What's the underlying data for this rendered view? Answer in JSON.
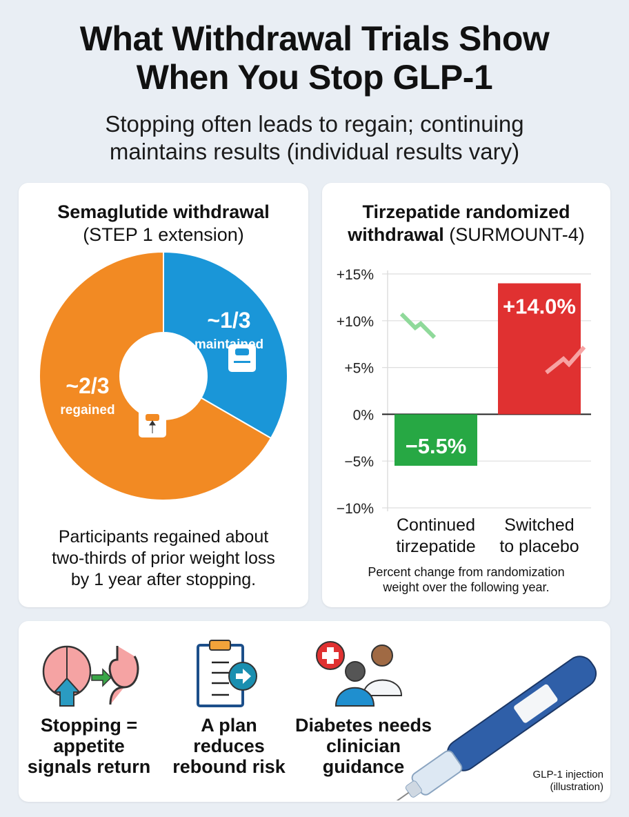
{
  "header": {
    "title_line1": "What Withdrawal Trials Show",
    "title_line2": "When You Stop GLP-1",
    "subtitle_line1": "Stopping often leads to regain; continuing",
    "subtitle_line2": "maintains results (individual results vary)"
  },
  "left_panel": {
    "title_bold": "Semaglutide withdrawal",
    "title_rest": "(STEP 1 extension)",
    "caption_line1": "Participants regained about",
    "caption_line2": "two-thirds of prior weight loss",
    "caption_line3": "by 1 year after stopping."
  },
  "right_panel": {
    "title_line1": "Tirzepatide randomized",
    "title_line2_bold": "withdrawal",
    "title_line2_rest": " (SURMOUNT-4)",
    "caption_line1": "Percent change from randomization",
    "caption_line2": "weight over the following year."
  },
  "chart_data": [
    {
      "type": "pie",
      "style": "donut",
      "slices": [
        {
          "label": "~1/3",
          "sublabel": "maintained",
          "value": 0.3333,
          "color": "#1a96d8",
          "icon": "scale-icon"
        },
        {
          "label": "~2/3",
          "sublabel": "regained",
          "value": 0.6667,
          "color": "#f28a23",
          "icon": "scale-up-icon"
        }
      ]
    },
    {
      "type": "bar",
      "categories": [
        "Continued tirzepatide",
        "Switched to placebo"
      ],
      "category_lines": [
        [
          "Continued",
          "tirzepatide"
        ],
        [
          "Switched",
          "to placebo"
        ]
      ],
      "values": [
        -5.5,
        14.0
      ],
      "data_labels": [
        "−5.5%",
        "+14.0%"
      ],
      "colors": [
        "#27a844",
        "#e03131"
      ],
      "ylim": [
        -10,
        15
      ],
      "yticks": [
        15,
        10,
        5,
        0,
        -5,
        -10
      ],
      "ytick_labels": [
        "+15%",
        "+10%",
        "+5%",
        "0%",
        "−5%",
        "−10%"
      ],
      "grid": true
    }
  ],
  "bottom": {
    "items": [
      {
        "icon": "brain-stomach-icon",
        "lines": [
          "Stopping =",
          "appetite",
          "signals return"
        ]
      },
      {
        "icon": "clipboard-plan-icon",
        "lines": [
          "A plan",
          "reduces",
          "rebound risk"
        ]
      },
      {
        "icon": "clinician-icon",
        "lines": [
          "Diabetes needs",
          "clinician",
          "guidance"
        ]
      }
    ],
    "pen_caption_line1": "GLP-1 injection",
    "pen_caption_line2": "(illustration)"
  }
}
